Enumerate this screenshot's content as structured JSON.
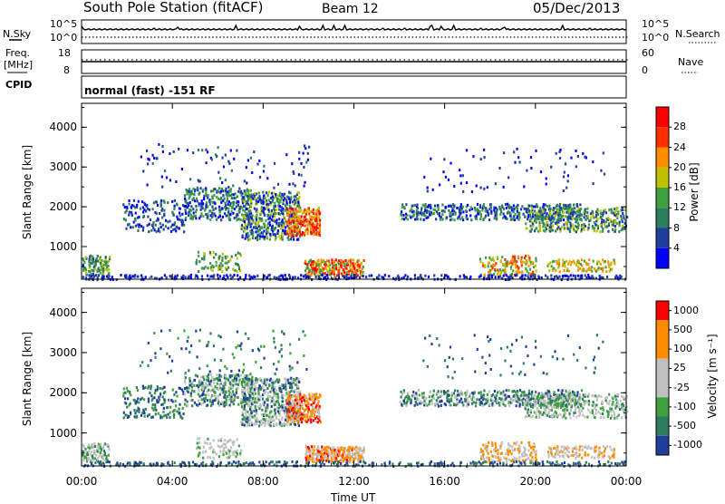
{
  "header": {
    "station": "South Pole Station (fitACF)",
    "beam": "Beam 12",
    "date": "05/Dec/2013"
  },
  "panel_labels": {
    "nsky": "N.Sky",
    "nsearch": "N.Search",
    "freq_line1": "Freq.",
    "freq_line2": "[MHz]",
    "nave": "Nave",
    "cpid": "CPID",
    "cpid_value": "normal (fast) -151 RF",
    "noise_left_top": "10^5",
    "noise_left_bottom": "10^0",
    "noise_right_top": "10^5",
    "noise_right_bottom": "10^0",
    "freq_left_top": "18",
    "freq_left_bottom": "8",
    "nave_right_top": "60",
    "nave_right_bottom": "0"
  },
  "colors": {
    "power": [
      "#0000ff",
      "#1f3f9f",
      "#2e7d5c",
      "#3fa040",
      "#c0c000",
      "#ff8c00",
      "#ff3000",
      "#ff0000"
    ],
    "velocity": [
      "#1f3f9f",
      "#2e7d5c",
      "#3fa040",
      "#c0c0c0",
      "#c0c0c0",
      "#ff8c00",
      "#ff8c00",
      "#ff0000"
    ]
  },
  "chart_data": [
    {
      "type": "heatmap",
      "name": "power",
      "ylabel": "Slant Range [km]",
      "y_ticks": [
        "1000",
        "2000",
        "3000",
        "4000"
      ],
      "ylim": [
        180,
        4600
      ],
      "x_ticks": [
        "00:00",
        "04:00",
        "08:00",
        "12:00",
        "16:00",
        "20:00",
        "00:00"
      ],
      "colorbar_label": "Power [dB]",
      "colorbar_ticks": [
        "28",
        "24",
        "20",
        "16",
        "12",
        "8",
        "4"
      ],
      "grid": false
    },
    {
      "type": "heatmap",
      "name": "velocity",
      "ylabel": "Slant Range [km]",
      "y_ticks": [
        "1000",
        "2000",
        "3000",
        "4000"
      ],
      "ylim": [
        180,
        4600
      ],
      "x_ticks": [
        "00:00",
        "04:00",
        "08:00",
        "12:00",
        "16:00",
        "20:00",
        "00:00"
      ],
      "xlabel": "Time UT",
      "colorbar_label": "Velocity [m s⁻¹]",
      "colorbar_ticks": [
        "1000",
        "500",
        "100",
        "25",
        "-25",
        "-100",
        "-500",
        "-1000"
      ],
      "grid": false
    }
  ]
}
